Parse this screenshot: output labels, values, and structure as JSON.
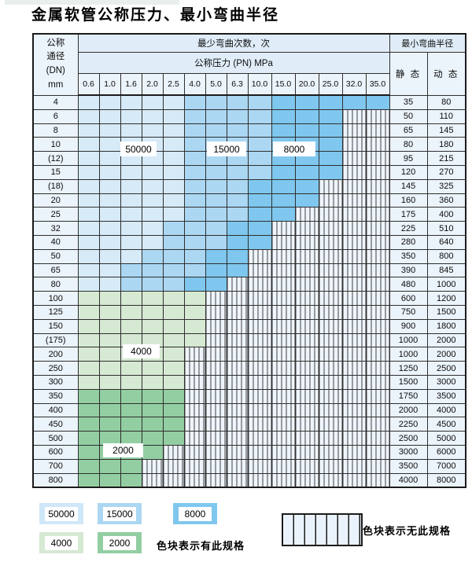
{
  "title": "金属软管公称压力、最小弯曲半径",
  "colors": {
    "zone_50000": "#d6eaf8",
    "zone_15000": "#abd7f2",
    "zone_8000": "#7fc7ee",
    "zone_4000": "#d6e9d3",
    "zone_2000": "#92cea2",
    "unavailable_bg": "#eef5fc",
    "header_bg": "#e0edf9",
    "grid_line": "#2f2f2f"
  },
  "table": {
    "dn_header_lines": [
      "公称",
      "通径",
      "(DN)",
      "mm"
    ],
    "bend_cycles_header": "最少弯曲次数，次",
    "pressure_header": "公称压力 (PN) MPa",
    "radius_header": "最小弯曲半径",
    "static_header": "静 态",
    "dynamic_header": "动 态",
    "pressure_columns": [
      "0.6",
      "1.0",
      "1.6",
      "2.0",
      "2.5",
      "4.0",
      "5.0",
      "6.3",
      "10.0",
      "15.0",
      "20.0",
      "25.0",
      "32.0",
      "35.0"
    ],
    "zone_labels": [
      {
        "text": "50000"
      },
      {
        "text": "15000"
      },
      {
        "text": "8000"
      },
      {
        "text": "4000"
      },
      {
        "text": "2000"
      }
    ],
    "rows": [
      {
        "dn": "4",
        "static": "35",
        "dynamic": "80",
        "cells": [
          "50000",
          "50000",
          "50000",
          "50000",
          "50000",
          "15000",
          "15000",
          "15000",
          "15000",
          "8000",
          "8000",
          "8000",
          "8000",
          "8000"
        ]
      },
      {
        "dn": "6",
        "static": "50",
        "dynamic": "110",
        "cells": [
          "50000",
          "50000",
          "50000",
          "50000",
          "50000",
          "15000",
          "15000",
          "15000",
          "15000",
          "8000",
          "8000",
          "8000",
          "none",
          "none"
        ]
      },
      {
        "dn": "8",
        "static": "65",
        "dynamic": "145",
        "cells": [
          "50000",
          "50000",
          "50000",
          "50000",
          "50000",
          "15000",
          "15000",
          "15000",
          "15000",
          "8000",
          "8000",
          "8000",
          "none",
          "none"
        ]
      },
      {
        "dn": "10",
        "static": "80",
        "dynamic": "180",
        "cells": [
          "50000",
          "50000",
          "50000",
          "50000",
          "50000",
          "15000",
          "15000",
          "15000",
          "15000",
          "8000",
          "8000",
          "8000",
          "none",
          "none"
        ]
      },
      {
        "dn": "(12)",
        "static": "95",
        "dynamic": "215",
        "cells": [
          "50000",
          "50000",
          "50000",
          "50000",
          "50000",
          "15000",
          "15000",
          "15000",
          "15000",
          "8000",
          "8000",
          "8000",
          "none",
          "none"
        ]
      },
      {
        "dn": "15",
        "static": "120",
        "dynamic": "270",
        "cells": [
          "50000",
          "50000",
          "50000",
          "50000",
          "50000",
          "15000",
          "15000",
          "15000",
          "15000",
          "8000",
          "8000",
          "8000",
          "none",
          "none"
        ]
      },
      {
        "dn": "(18)",
        "static": "145",
        "dynamic": "325",
        "cells": [
          "50000",
          "50000",
          "50000",
          "50000",
          "50000",
          "15000",
          "15000",
          "15000",
          "8000",
          "8000",
          "8000",
          "none",
          "none",
          "none"
        ]
      },
      {
        "dn": "20",
        "static": "160",
        "dynamic": "360",
        "cells": [
          "50000",
          "50000",
          "50000",
          "50000",
          "50000",
          "15000",
          "15000",
          "15000",
          "8000",
          "8000",
          "8000",
          "none",
          "none",
          "none"
        ]
      },
      {
        "dn": "25",
        "static": "175",
        "dynamic": "400",
        "cells": [
          "50000",
          "50000",
          "50000",
          "50000",
          "50000",
          "15000",
          "15000",
          "15000",
          "8000",
          "8000",
          "none",
          "none",
          "none",
          "none"
        ]
      },
      {
        "dn": "32",
        "static": "225",
        "dynamic": "510",
        "cells": [
          "50000",
          "50000",
          "50000",
          "50000",
          "15000",
          "15000",
          "15000",
          "8000",
          "8000",
          "none",
          "none",
          "none",
          "none",
          "none"
        ]
      },
      {
        "dn": "40",
        "static": "280",
        "dynamic": "640",
        "cells": [
          "50000",
          "50000",
          "50000",
          "50000",
          "15000",
          "15000",
          "15000",
          "8000",
          "8000",
          "none",
          "none",
          "none",
          "none",
          "none"
        ]
      },
      {
        "dn": "50",
        "static": "350",
        "dynamic": "800",
        "cells": [
          "50000",
          "50000",
          "50000",
          "15000",
          "15000",
          "15000",
          "8000",
          "8000",
          "none",
          "none",
          "none",
          "none",
          "none",
          "none"
        ]
      },
      {
        "dn": "65",
        "static": "390",
        "dynamic": "845",
        "cells": [
          "50000",
          "50000",
          "15000",
          "15000",
          "15000",
          "15000",
          "8000",
          "8000",
          "none",
          "none",
          "none",
          "none",
          "none",
          "none"
        ]
      },
      {
        "dn": "80",
        "static": "480",
        "dynamic": "1000",
        "cells": [
          "50000",
          "50000",
          "15000",
          "15000",
          "15000",
          "8000",
          "8000",
          "none",
          "none",
          "none",
          "none",
          "none",
          "none",
          "none"
        ]
      },
      {
        "dn": "100",
        "static": "600",
        "dynamic": "1200",
        "cells": [
          "4000",
          "4000",
          "4000",
          "4000",
          "4000",
          "4000",
          "none",
          "none",
          "none",
          "none",
          "none",
          "none",
          "none",
          "none"
        ]
      },
      {
        "dn": "125",
        "static": "750",
        "dynamic": "1500",
        "cells": [
          "4000",
          "4000",
          "4000",
          "4000",
          "4000",
          "4000",
          "none",
          "none",
          "none",
          "none",
          "none",
          "none",
          "none",
          "none"
        ]
      },
      {
        "dn": "150",
        "static": "900",
        "dynamic": "1800",
        "cells": [
          "4000",
          "4000",
          "4000",
          "4000",
          "4000",
          "4000",
          "none",
          "none",
          "none",
          "none",
          "none",
          "none",
          "none",
          "none"
        ]
      },
      {
        "dn": "(175)",
        "static": "1000",
        "dynamic": "2000",
        "cells": [
          "4000",
          "4000",
          "4000",
          "4000",
          "4000",
          "4000",
          "none",
          "none",
          "none",
          "none",
          "none",
          "none",
          "none",
          "none"
        ]
      },
      {
        "dn": "200",
        "static": "1000",
        "dynamic": "2000",
        "cells": [
          "4000",
          "4000",
          "4000",
          "4000",
          "4000",
          "none",
          "none",
          "none",
          "none",
          "none",
          "none",
          "none",
          "none",
          "none"
        ]
      },
      {
        "dn": "250",
        "static": "1250",
        "dynamic": "2500",
        "cells": [
          "4000",
          "4000",
          "4000",
          "4000",
          "4000",
          "none",
          "none",
          "none",
          "none",
          "none",
          "none",
          "none",
          "none",
          "none"
        ]
      },
      {
        "dn": "300",
        "static": "1500",
        "dynamic": "3000",
        "cells": [
          "4000",
          "4000",
          "4000",
          "4000",
          "4000",
          "none",
          "none",
          "none",
          "none",
          "none",
          "none",
          "none",
          "none",
          "none"
        ]
      },
      {
        "dn": "350",
        "static": "1750",
        "dynamic": "3500",
        "cells": [
          "2000",
          "2000",
          "2000",
          "2000",
          "2000",
          "none",
          "none",
          "none",
          "none",
          "none",
          "none",
          "none",
          "none",
          "none"
        ]
      },
      {
        "dn": "400",
        "static": "2000",
        "dynamic": "4000",
        "cells": [
          "2000",
          "2000",
          "2000",
          "2000",
          "2000",
          "none",
          "none",
          "none",
          "none",
          "none",
          "none",
          "none",
          "none",
          "none"
        ]
      },
      {
        "dn": "450",
        "static": "2250",
        "dynamic": "4500",
        "cells": [
          "2000",
          "2000",
          "2000",
          "2000",
          "2000",
          "none",
          "none",
          "none",
          "none",
          "none",
          "none",
          "none",
          "none",
          "none"
        ]
      },
      {
        "dn": "500",
        "static": "2500",
        "dynamic": "5000",
        "cells": [
          "2000",
          "2000",
          "2000",
          "2000",
          "2000",
          "none",
          "none",
          "none",
          "none",
          "none",
          "none",
          "none",
          "none",
          "none"
        ]
      },
      {
        "dn": "600",
        "static": "3000",
        "dynamic": "6000",
        "cells": [
          "2000",
          "2000",
          "2000",
          "2000",
          "none",
          "none",
          "none",
          "none",
          "none",
          "none",
          "none",
          "none",
          "none",
          "none"
        ]
      },
      {
        "dn": "700",
        "static": "3500",
        "dynamic": "7000",
        "cells": [
          "2000",
          "2000",
          "2000",
          "none",
          "none",
          "none",
          "none",
          "none",
          "none",
          "none",
          "none",
          "none",
          "none",
          "none"
        ]
      },
      {
        "dn": "800",
        "static": "4000",
        "dynamic": "8000",
        "cells": [
          "2000",
          "2000",
          "2000",
          "none",
          "none",
          "none",
          "none",
          "none",
          "none",
          "none",
          "none",
          "none",
          "none",
          "none"
        ]
      }
    ]
  },
  "legend": {
    "chips": [
      {
        "label": "50000",
        "color": "#d6eaf8"
      },
      {
        "label": "15000",
        "color": "#abd7f2"
      },
      {
        "label": "8000",
        "color": "#7fc7ee"
      },
      {
        "label": "4000",
        "color": "#d6e9d3"
      },
      {
        "label": "2000",
        "color": "#92cea2"
      }
    ],
    "available_text": "色块表示有此规格",
    "unavailable_text": "色块表示无此规格"
  }
}
